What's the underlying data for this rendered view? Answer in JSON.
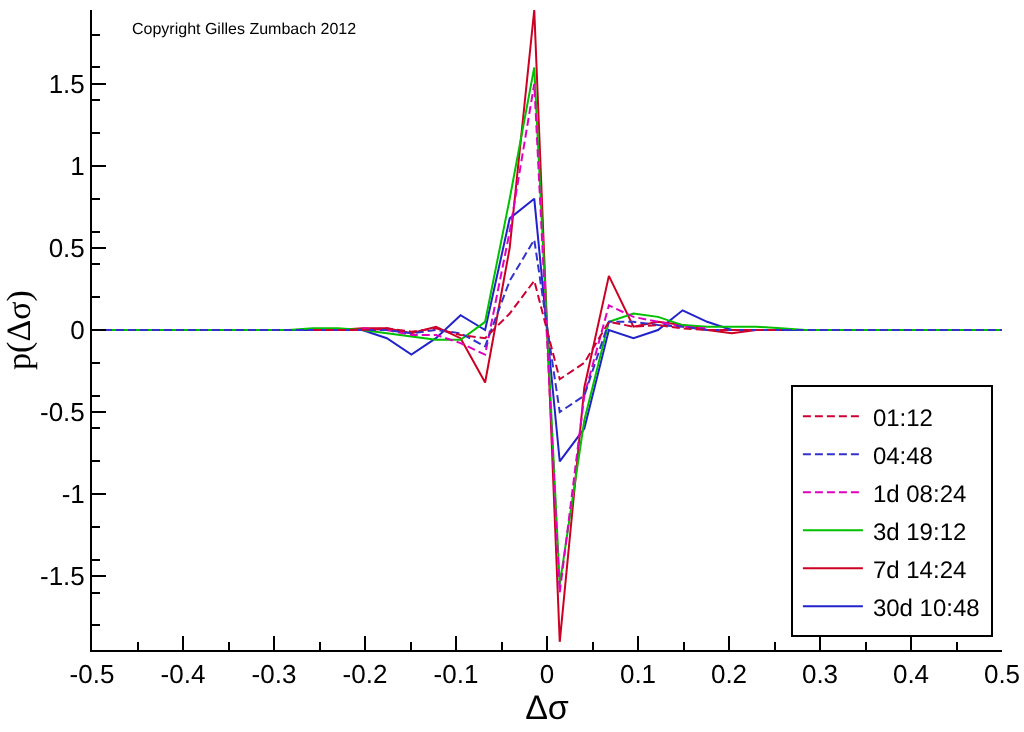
{
  "chart_data": {
    "type": "line",
    "xlabel": "Δσ",
    "ylabel": "p(Δσ)",
    "annotations": [
      "Copyright Gilles Zumbach 2012"
    ],
    "x": [
      -0.5,
      -0.284,
      -0.257,
      -0.23,
      -0.203,
      -0.176,
      -0.149,
      -0.122,
      -0.095,
      -0.068,
      -0.041,
      -0.014,
      0.014,
      0.041,
      0.068,
      0.095,
      0.122,
      0.149,
      0.176,
      0.203,
      0.23,
      0.257,
      0.284,
      0.5
    ],
    "series": [
      {
        "name": "01:12",
        "color": "#cc0033",
        "line_style": "dashed",
        "values": [
          null,
          null,
          0,
          0,
          0,
          0.01,
          -0.01,
          0.01,
          -0.03,
          -0.05,
          0.1,
          0.3,
          -0.3,
          -0.2,
          0.05,
          0.02,
          0.03,
          0.01,
          0,
          0,
          0,
          0,
          null,
          null
        ]
      },
      {
        "name": "04:48",
        "color": "#3333cc",
        "line_style": "dashed",
        "values": [
          0,
          0,
          0,
          0,
          0,
          0,
          -0.02,
          0,
          -0.02,
          -0.1,
          0.3,
          0.55,
          -0.5,
          -0.4,
          0.05,
          0.05,
          0.03,
          0.02,
          0,
          0,
          0,
          0,
          0,
          0
        ]
      },
      {
        "name": "1d 08:24",
        "color": "#e000c0",
        "line_style": "dashed",
        "values": [
          null,
          null,
          null,
          null,
          0.01,
          0,
          -0.03,
          -0.03,
          -0.08,
          -0.15,
          0.6,
          1.5,
          -1.6,
          -0.4,
          0.15,
          0.08,
          0.05,
          0.02,
          0.01,
          null,
          null,
          null,
          null,
          null
        ]
      },
      {
        "name": "3d 19:12",
        "color": "#00c000",
        "line_style": "solid",
        "values": [
          0,
          0,
          0.01,
          0.01,
          0,
          -0.02,
          -0.04,
          -0.06,
          -0.06,
          0.05,
          0.8,
          1.6,
          -1.55,
          -0.55,
          0.05,
          0.1,
          0.08,
          0.03,
          0.02,
          0.02,
          0.02,
          0.01,
          0,
          0
        ]
      },
      {
        "name": "7d 14:24",
        "color": "#cc0022",
        "line_style": "solid",
        "values": [
          null,
          null,
          0,
          0,
          0.01,
          0.01,
          -0.02,
          0.02,
          -0.05,
          -0.32,
          0.5,
          1.95,
          -1.9,
          -0.35,
          0.33,
          0.02,
          0.05,
          0.03,
          0,
          -0.02,
          0,
          0,
          null,
          null
        ]
      },
      {
        "name": "30d 10:48",
        "color": "#2222cc",
        "line_style": "solid",
        "values": [
          0,
          0,
          0,
          0,
          0,
          -0.05,
          -0.15,
          -0.05,
          0.09,
          0,
          0.68,
          0.8,
          -0.8,
          -0.6,
          0,
          -0.05,
          0,
          0.12,
          0.05,
          0,
          0,
          0,
          0,
          0
        ]
      }
    ],
    "xlim": [
      -0.5,
      0.5
    ],
    "xticks": [
      -0.5,
      -0.4,
      -0.3,
      -0.2,
      -0.1,
      0,
      0.1,
      0.2,
      0.3,
      0.4,
      0.5
    ],
    "ylim": [
      -1.95,
      1.95
    ],
    "yticks": [
      -1.5,
      -1,
      -0.5,
      0,
      0.5,
      1,
      1.5
    ],
    "grid": false,
    "legend": "bottom right",
    "marker": "none"
  }
}
